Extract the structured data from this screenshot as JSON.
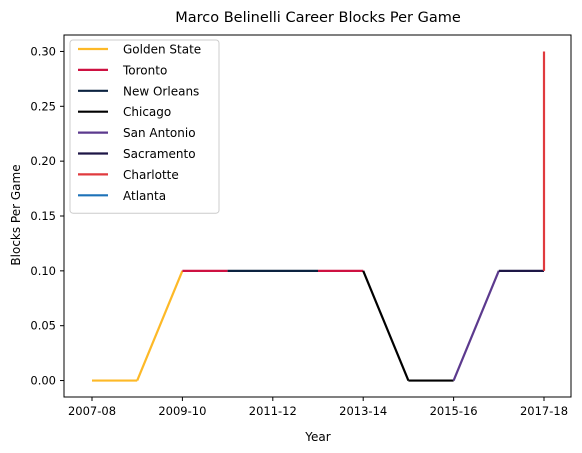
{
  "chart_data": {
    "type": "line",
    "title": "Marco Belinelli Career Blocks Per Game",
    "xlabel": "Year",
    "ylabel": "Blocks Per Game",
    "x_categories": [
      "2007-08",
      "2008-09",
      "2009-10",
      "2010-11",
      "2011-12",
      "2012-13",
      "2013-14",
      "2014-15",
      "2015-16",
      "2016-17",
      "2017-18"
    ],
    "x_ticks": [
      "2007-08",
      "2009-10",
      "2011-12",
      "2013-14",
      "2015-16",
      "2017-18"
    ],
    "y_ticks": [
      "0.00",
      "0.05",
      "0.10",
      "0.15",
      "0.20",
      "0.25",
      "0.30"
    ],
    "ylim": [
      -0.015,
      0.315
    ],
    "grid": false,
    "legend_position": "top-left",
    "series": [
      {
        "name": "Golden State",
        "color": "#FDB927",
        "points": [
          [
            "2007-08",
            0.0
          ],
          [
            "2008-09",
            0.0
          ],
          [
            "2009-10",
            0.1
          ]
        ]
      },
      {
        "name": "Toronto",
        "color": "#CE1141",
        "points": [
          [
            "2009-10",
            0.1
          ],
          [
            "2010-11",
            0.1
          ]
        ]
      },
      {
        "name": "New Orleans",
        "color": "#0C2340",
        "points": [
          [
            "2010-11",
            0.1
          ],
          [
            "2011-12",
            0.1
          ],
          [
            "2012-13",
            0.1
          ]
        ]
      },
      {
        "name": "Chicago",
        "color": "#000000",
        "points": [
          [
            "2013-14",
            0.1
          ],
          [
            "2014-15",
            0.0
          ]
        ]
      },
      {
        "name": "San Antonio",
        "color": "#5C3A8E",
        "points": [
          [
            "2014-15",
            0.0
          ],
          [
            "2015-16",
            0.0
          ],
          [
            "2016-17",
            0.1
          ]
        ]
      },
      {
        "name": "Sacramento",
        "color": "#1D1646",
        "points": [
          [
            "2015-16",
            0.0
          ]
        ]
      },
      {
        "name": "Charlotte",
        "color": "#E03A3E",
        "points": [
          [
            "2016-17",
            0.1
          ],
          [
            "2017-18",
            0.1
          ]
        ]
      },
      {
        "name": "Atlanta",
        "color": "#1D72B8",
        "points": [
          [
            "2017-18",
            0.1
          ],
          [
            "2017-18",
            0.3
          ]
        ]
      }
    ],
    "segments": [
      {
        "team": "Golden State",
        "color": "#FDB927",
        "from": [
          "2007-08",
          0.0
        ],
        "to": [
          "2008-09",
          0.0
        ]
      },
      {
        "team": "Golden State",
        "color": "#FDB927",
        "from": [
          "2008-09",
          0.0
        ],
        "to": [
          "2009-10",
          0.1
        ]
      },
      {
        "team": "Toronto",
        "color": "#CE1141",
        "from": [
          "2009-10",
          0.1
        ],
        "to": [
          "2010-11",
          0.1
        ]
      },
      {
        "team": "New Orleans",
        "color": "#0C2340",
        "from": [
          "2010-11",
          0.1
        ],
        "to": [
          "2012-13",
          0.1
        ]
      },
      {
        "team": "Toronto",
        "color": "#CE1141",
        "from": [
          "2012-13",
          0.1
        ],
        "to": [
          "2013-14",
          0.1
        ]
      },
      {
        "team": "Chicago",
        "color": "#000000",
        "from": [
          "2013-14",
          0.1
        ],
        "to": [
          "2014-15",
          0.0
        ]
      },
      {
        "team": "Chicago",
        "color": "#000000",
        "from": [
          "2014-15",
          0.0
        ],
        "to": [
          "2015-16",
          0.0
        ]
      },
      {
        "team": "San Antonio",
        "color": "#5C3A8E",
        "from": [
          "2015-16",
          0.0
        ],
        "to": [
          "2016-17",
          0.1
        ]
      },
      {
        "team": "Sacramento",
        "color": "#1D1646",
        "from": [
          "2016-17",
          0.1
        ],
        "to": [
          "2017-18",
          0.1
        ]
      },
      {
        "team": "Charlotte",
        "color": "#E03A3E",
        "from": [
          "2017-18",
          0.1
        ],
        "to": [
          "2017-18",
          0.3
        ]
      }
    ]
  }
}
